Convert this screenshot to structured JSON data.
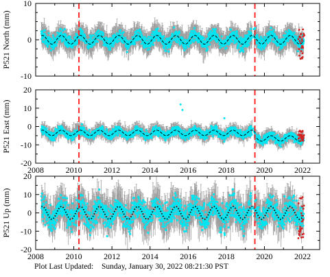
{
  "footer": {
    "label": "Plot Last Updated:",
    "timestamp": "Sunday, January 30, 2022 08:21:30 PST"
  },
  "colors": {
    "error_bars": "#9a9a9a",
    "daily_points": "#00e5f2",
    "model_fit": "#000000",
    "recent_points": "#d42020",
    "event_lines": "#ff2a2a"
  },
  "chart_data": [
    {
      "type": "scatter",
      "component": "north",
      "ylabel": "P521 North (mm)",
      "xlim": [
        2008,
        2022.9
      ],
      "ylim": [
        -10,
        10
      ],
      "xticks": [
        2008,
        2010,
        2012,
        2014,
        2016,
        2018,
        2020,
        2022
      ],
      "yticks": [
        -10,
        0,
        10
      ],
      "x_tick_labels_shown": false,
      "grid": false,
      "event_lines_x": [
        2010.27,
        2019.5
      ],
      "data_start_x": 2008.3,
      "data_end_x": 2022.06,
      "seasonal_amplitude": 1.2,
      "noise_range": 1.5,
      "error_bar_range": 3.5,
      "recent_points_from_x": 2021.8,
      "recent_points_range_y": [
        -5.5,
        3
      ]
    },
    {
      "type": "scatter",
      "component": "east",
      "ylabel": "P521 East (mm)",
      "xlim": [
        2008,
        2022.9
      ],
      "ylim": [
        -20,
        20
      ],
      "xticks": [
        2008,
        2010,
        2012,
        2014,
        2016,
        2018,
        2020,
        2022
      ],
      "yticks": [
        -20,
        -10,
        0,
        10,
        20
      ],
      "x_tick_labels_shown": true,
      "grid": false,
      "event_lines_x": [
        2010.27,
        2019.5
      ],
      "data_start_x": 2008.3,
      "data_end_x": 2022.06,
      "seasonal_amplitude": 1.5,
      "noise_range": 2,
      "error_bar_range": 4,
      "baseline_before_2019_5": -3.5,
      "baseline_after_2019_5": -6.5,
      "outlier_points": [
        [
          2015.6,
          12
        ],
        [
          2015.7,
          9
        ],
        [
          2017.9,
          4.5
        ]
      ],
      "recent_points_from_x": 2021.8,
      "recent_points_range_y": [
        -8,
        -2
      ]
    },
    {
      "type": "scatter",
      "component": "up",
      "ylabel": "P521 Up (mm)",
      "xlim": [
        2008,
        2022.9
      ],
      "ylim": [
        -20,
        20
      ],
      "xticks": [
        2008,
        2010,
        2012,
        2014,
        2016,
        2018,
        2020,
        2022
      ],
      "yticks": [
        -20,
        -10,
        0,
        10,
        20
      ],
      "x_tick_labels_shown": true,
      "grid": false,
      "event_lines_x": [
        2010.27,
        2019.5
      ],
      "data_start_x": 2008.3,
      "data_end_x": 2022.06,
      "seasonal_amplitude": 3.5,
      "noise_range": 6,
      "error_bar_range": 10,
      "recent_points_from_x": 2021.8,
      "recent_points_range_y": [
        -14,
        9
      ]
    }
  ]
}
